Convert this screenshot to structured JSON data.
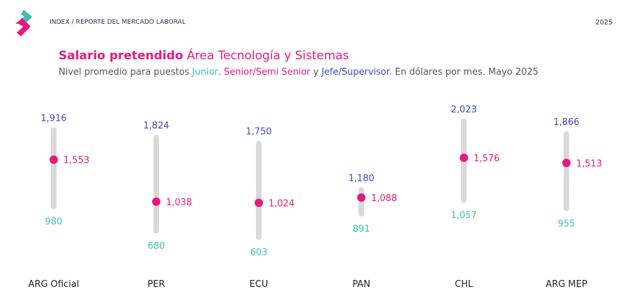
{
  "header": {
    "label": "INDEX / REPORTE DEL MERCADO LABORAL",
    "year": "2025"
  },
  "colors": {
    "junior": "#38c1b0",
    "senior": "#e6197f",
    "jefe": "#3b47c9",
    "bar": "#d9d9d9",
    "logo_teal": "#38c1b0",
    "logo_pink": "#e6197f"
  },
  "title": {
    "bold": "Salario pretendido",
    "rest": " Área Tecnología y Sistemas"
  },
  "subtitle": {
    "prefix": "Nivel promedio para puestos ",
    "junior": "Junior,",
    "senior": "Senior/Semi Senior",
    "and": " y ",
    "jefe": "Jefe/Supervisor",
    "suffix": ". En dólares por mes. Mayo 2025"
  },
  "chart_data": {
    "type": "range",
    "categories": [
      "ARG Oficial",
      "PER",
      "ECU",
      "PAN",
      "CHL",
      "ARG MEP"
    ],
    "series": [
      {
        "name": "Junior",
        "values": [
          980,
          680,
          603,
          891,
          1057,
          955
        ],
        "labels": [
          "980",
          "680",
          "603",
          "891",
          "1,057",
          "955"
        ]
      },
      {
        "name": "Senior/Semi Senior",
        "values": [
          1553,
          1038,
          1024,
          1088,
          1576,
          1513
        ],
        "labels": [
          "1,553",
          "1,038",
          "1,024",
          "1,088",
          "1,576",
          "1,513"
        ]
      },
      {
        "name": "Jefe/Supervisor",
        "values": [
          1916,
          1824,
          1750,
          1180,
          2023,
          1866
        ],
        "labels": [
          "1,916",
          "1,824",
          "1,750",
          "1,180",
          "2,023",
          "1,866"
        ]
      }
    ],
    "ylim": [
      600,
      2030
    ],
    "grid": false,
    "legend": "in subtitle"
  }
}
